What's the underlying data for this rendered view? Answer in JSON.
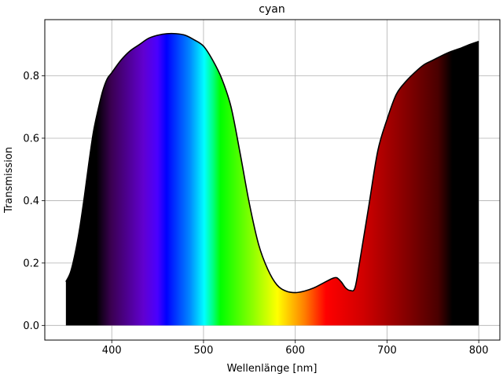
{
  "chart_data": {
    "type": "area",
    "title": "cyan",
    "xlabel": "Wellenlänge [nm]",
    "ylabel": "Transmission",
    "xlim": [
      327,
      823
    ],
    "ylim": [
      -0.047,
      0.98
    ],
    "grid": true,
    "xticks": [
      400,
      500,
      600,
      700,
      800
    ],
    "yticks": [
      0.0,
      0.2,
      0.4,
      0.6,
      0.8
    ],
    "curve_color": "#000000",
    "x": [
      350,
      355,
      360,
      365,
      370,
      375,
      380,
      385,
      390,
      395,
      400,
      410,
      420,
      430,
      440,
      450,
      460,
      470,
      480,
      490,
      500,
      510,
      520,
      530,
      540,
      550,
      560,
      570,
      580,
      590,
      600,
      610,
      620,
      630,
      640,
      645,
      650,
      655,
      660,
      665,
      670,
      680,
      690,
      700,
      710,
      720,
      730,
      740,
      750,
      760,
      770,
      780,
      790,
      800
    ],
    "y": [
      0.14,
      0.17,
      0.23,
      0.31,
      0.41,
      0.52,
      0.62,
      0.69,
      0.75,
      0.79,
      0.81,
      0.85,
      0.88,
      0.9,
      0.92,
      0.93,
      0.935,
      0.935,
      0.93,
      0.915,
      0.895,
      0.85,
      0.79,
      0.7,
      0.55,
      0.39,
      0.26,
      0.18,
      0.13,
      0.11,
      0.105,
      0.11,
      0.12,
      0.135,
      0.15,
      0.153,
      0.14,
      0.12,
      0.112,
      0.12,
      0.2,
      0.38,
      0.56,
      0.66,
      0.74,
      0.78,
      0.81,
      0.835,
      0.85,
      0.865,
      0.878,
      0.888,
      0.9,
      0.91
    ]
  }
}
